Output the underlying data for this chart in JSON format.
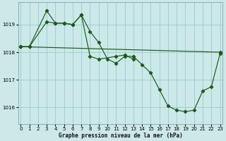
{
  "title": "Graphe pression niveau de la mer (hPa)",
  "background_color": "#cce8e8",
  "grid_color": "#99cccc",
  "line_color": "#1a5c1a",
  "x_ticks": [
    0,
    1,
    2,
    3,
    4,
    5,
    6,
    7,
    8,
    9,
    10,
    11,
    12,
    13,
    14,
    15,
    16,
    17,
    18,
    19,
    20,
    21,
    22,
    23
  ],
  "y_ticks": [
    1016,
    1017,
    1018,
    1019
  ],
  "ylim": [
    1015.4,
    1019.8
  ],
  "xlim": [
    -0.3,
    23.3
  ],
  "trend_line": {
    "x": [
      0,
      23
    ],
    "y": [
      1018.2,
      1018.0
    ]
  },
  "line_main": {
    "x": [
      0,
      1,
      3,
      4,
      5,
      6,
      7,
      8,
      9,
      10,
      11,
      12,
      13,
      14,
      15,
      16,
      17,
      18,
      19,
      20,
      21,
      22,
      23
    ],
    "y": [
      1018.2,
      1018.2,
      1019.5,
      1019.05,
      1019.05,
      1019.0,
      1019.35,
      1018.75,
      1018.35,
      1017.75,
      1017.6,
      1017.85,
      1017.85,
      1017.55,
      1017.25,
      1016.65,
      1016.05,
      1015.9,
      1015.85,
      1015.9,
      1016.6,
      1016.75,
      1017.95
    ]
  },
  "line_short": {
    "x": [
      0,
      1,
      3,
      4,
      5,
      6,
      7,
      8,
      9,
      11,
      12,
      13
    ],
    "y": [
      1018.2,
      1018.2,
      1019.1,
      1019.05,
      1019.05,
      1019.0,
      1019.35,
      1017.85,
      1017.75,
      1017.85,
      1017.9,
      1017.75
    ]
  }
}
